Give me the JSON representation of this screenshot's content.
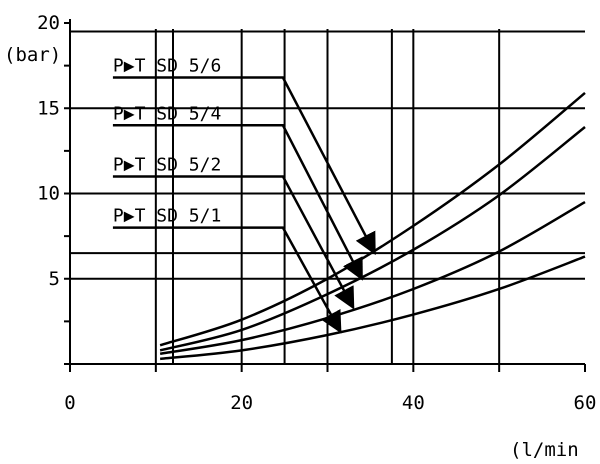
{
  "chart_data": {
    "type": "line",
    "xlabel": "(l/min",
    "ylabel": "(bar)",
    "xlim": [
      0,
      60
    ],
    "ylim": [
      0,
      20
    ],
    "grid": true,
    "x_ticks": [
      "0",
      "20",
      "40",
      "60"
    ],
    "y_ticks": [
      "5",
      "10",
      "15",
      "20"
    ],
    "series": [
      {
        "name": "P▶T SD 5/6",
        "x": [
          10.5,
          20,
          30,
          40,
          50,
          60
        ],
        "y": [
          1.1,
          2.6,
          5.0,
          8.1,
          11.7,
          15.9
        ],
        "arrow_from": [
          5,
          16.8
        ],
        "arrow_to": [
          35.5,
          6.5
        ]
      },
      {
        "name": "P▶T SD 5/4",
        "x": [
          10.5,
          20,
          30,
          40,
          50,
          60
        ],
        "y": [
          0.8,
          2.0,
          4.1,
          6.7,
          9.9,
          13.9
        ],
        "arrow_from": [
          5,
          14.0
        ],
        "arrow_to": [
          34,
          5.0
        ]
      },
      {
        "name": "P▶T SD 5/2",
        "x": [
          10.5,
          20,
          30,
          40,
          50,
          60
        ],
        "y": [
          0.6,
          1.4,
          2.7,
          4.4,
          6.6,
          9.5
        ],
        "arrow_from": [
          5,
          11.0
        ],
        "arrow_to": [
          33,
          3.3
        ]
      },
      {
        "name": "P▶T SD 5/1",
        "x": [
          10.5,
          20,
          30,
          40,
          50,
          60
        ],
        "y": [
          0.3,
          0.8,
          1.7,
          2.9,
          4.4,
          6.3
        ],
        "arrow_from": [
          5,
          8.0
        ],
        "arrow_to": [
          31.5,
          1.9
        ]
      }
    ],
    "gridlines_x": [
      10,
      12,
      20,
      25,
      30,
      37.5,
      40,
      50
    ],
    "gridlines_y": [
      5,
      6.5,
      10,
      15,
      19.5
    ]
  }
}
